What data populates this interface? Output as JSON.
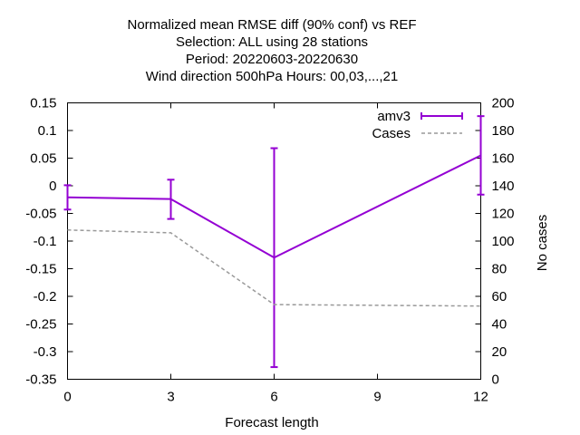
{
  "chart_data": {
    "type": "line",
    "title_lines": [
      "Normalized mean RMSE diff (90% conf) vs REF",
      "Selection: ALL using    28 stations",
      "Period: 20220603-20220630",
      "Wind direction 500hPa   Hours:  00,03,...,21"
    ],
    "xlabel": "Forecast length",
    "ylabel": "",
    "y2label": "No cases",
    "xlim": [
      0,
      12
    ],
    "ylim": [
      -0.35,
      0.15
    ],
    "y2lim": [
      0,
      200
    ],
    "x_ticks": [
      "0",
      "3",
      "6",
      "9",
      "12"
    ],
    "y_ticks": [
      "0.15",
      "0.1",
      "0.05",
      "0",
      "-0.05",
      "-0.1",
      "-0.15",
      "-0.2",
      "-0.25",
      "-0.3",
      "-0.35"
    ],
    "y2_ticks": [
      "200",
      "180",
      "160",
      "140",
      "120",
      "100",
      "80",
      "60",
      "40",
      "20",
      "0"
    ],
    "grid": false,
    "legend_position": "top-right",
    "series": [
      {
        "name": "amv3",
        "axis": "y",
        "color": "#9400d3",
        "x": [
          0,
          3,
          6,
          12
        ],
        "y": [
          -0.021,
          -0.024,
          -0.13,
          0.055
        ],
        "err_low": [
          -0.043,
          -0.06,
          -0.328,
          -0.016
        ],
        "err_high": [
          0.001,
          0.011,
          0.068,
          0.126
        ]
      },
      {
        "name": "Cases",
        "axis": "y2",
        "color": "#999999",
        "style": "dashed",
        "x": [
          0,
          3,
          6,
          12
        ],
        "y": [
          108,
          106,
          54,
          53
        ]
      }
    ]
  }
}
